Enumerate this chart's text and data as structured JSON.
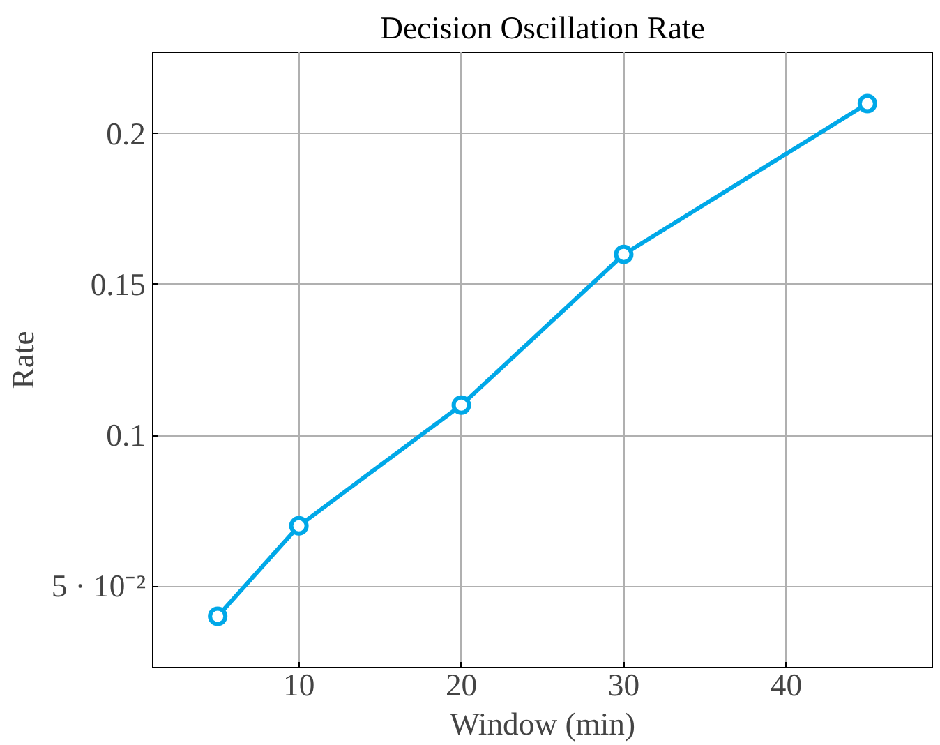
{
  "chart_data": {
    "type": "line",
    "title": "Decision Oscillation Rate",
    "xlabel": "Window (min)",
    "ylabel": "Rate",
    "x": [
      5,
      10,
      20,
      30,
      45
    ],
    "series": [
      {
        "color": "#00a8e8",
        "values": [
          0.04,
          0.07,
          0.11,
          0.16,
          0.21
        ]
      }
    ],
    "xlim": [
      1,
      49
    ],
    "xticks": [
      10,
      20,
      30,
      40
    ],
    "ylim": [
      0.023,
      0.227
    ],
    "yticks": [
      {
        "value": 0.05,
        "label": "5 · 10⁻²"
      },
      0.1,
      0.15,
      0.2
    ],
    "grid": true,
    "marker": "circle",
    "line_style": "solid"
  }
}
